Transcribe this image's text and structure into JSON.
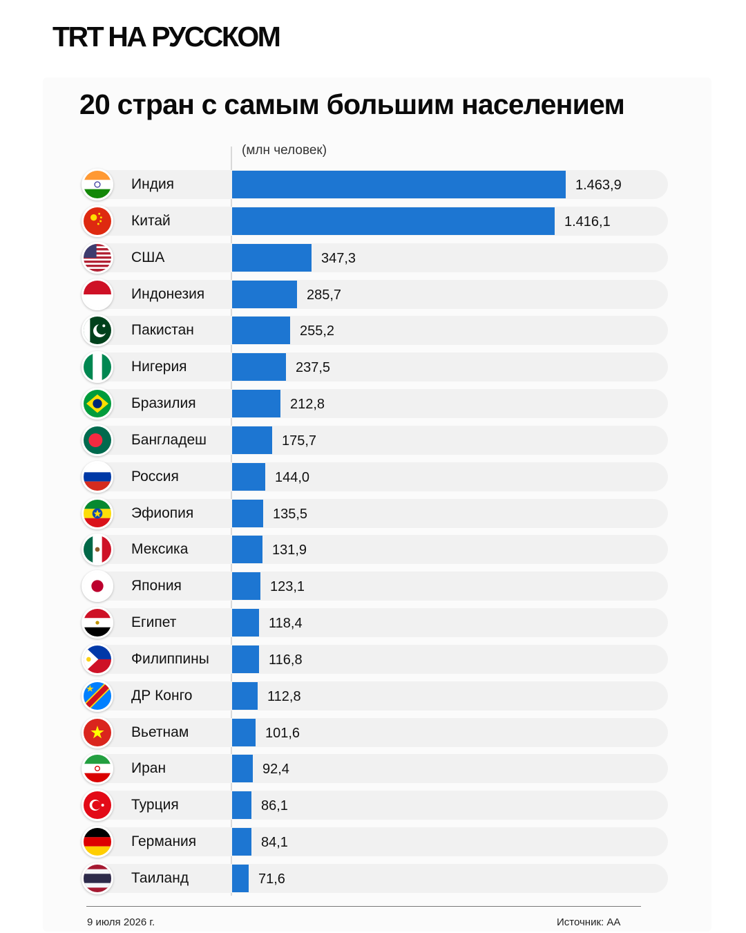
{
  "brand": {
    "part1": "TRT",
    "part2": "НА РУССКОМ"
  },
  "chart_data": {
    "type": "bar",
    "orientation": "horizontal",
    "title": "20 стран с самым большим населением",
    "unit_label": "(млн человек)",
    "categories": [
      "Индия",
      "Китай",
      "США",
      "Индонезия",
      "Пакистан",
      "Нигерия",
      "Бразилия",
      "Бангладеш",
      "Россия",
      "Эфиопия",
      "Мексика",
      "Япония",
      "Египет",
      "Филиппины",
      "ДР Конго",
      "Вьетнам",
      "Иран",
      "Турция",
      "Германия",
      "Таиланд"
    ],
    "values": [
      1463.9,
      1416.1,
      347.3,
      285.7,
      255.2,
      237.5,
      212.8,
      175.7,
      144.0,
      135.5,
      131.9,
      123.1,
      118.4,
      116.8,
      112.8,
      101.6,
      92.4,
      86.1,
      84.1,
      71.6
    ],
    "value_labels": [
      "1.463,9",
      "1.416,1",
      "347,3",
      "285,7",
      "255,2",
      "237,5",
      "212,8",
      "175,7",
      "144,0",
      "135,5",
      "131,9",
      "123,1",
      "118,4",
      "116,8",
      "112,8",
      "101,6",
      "92,4",
      "86,1",
      "84,1",
      "71,6"
    ],
    "flag_icons": [
      "india-flag-icon",
      "china-flag-icon",
      "usa-flag-icon",
      "indonesia-flag-icon",
      "pakistan-flag-icon",
      "nigeria-flag-icon",
      "brazil-flag-icon",
      "bangladesh-flag-icon",
      "russia-flag-icon",
      "ethiopia-flag-icon",
      "mexico-flag-icon",
      "japan-flag-icon",
      "egypt-flag-icon",
      "philippines-flag-icon",
      "dr-congo-flag-icon",
      "vietnam-flag-icon",
      "iran-flag-icon",
      "turkey-flag-icon",
      "germany-flag-icon",
      "thailand-flag-icon"
    ],
    "bar_color": "#1d76d2",
    "xlim": [
      0,
      1463.9
    ],
    "grid": false,
    "legend": "none"
  },
  "footer": {
    "date": "9 июля 2026 г.",
    "source": "Источник: AA"
  }
}
